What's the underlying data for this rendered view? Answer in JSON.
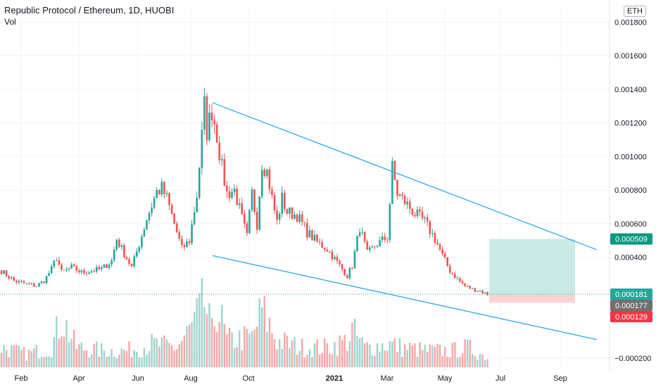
{
  "header": {
    "symbol": "Republic Protocol / Ethereum, 1D, HUOBI",
    "volume_label": "Vol",
    "currency": "ETH"
  },
  "chart_data": {
    "type": "candlestick",
    "title": "Republic Protocol / Ethereum, 1D, HUOBI",
    "x_tick_labels": [
      "Feb",
      "Apr",
      "Jun",
      "Aug",
      "Oct",
      "2021",
      "Mar",
      "May",
      "Jul",
      "Sep"
    ],
    "y_tick_labels": [
      "0.001800",
      "0.001600",
      "0.001400",
      "0.001200",
      "0.001000",
      "0.000800",
      "0.000600",
      "0.000400",
      "0.000200",
      "−0.000200"
    ],
    "y_ticks": [
      0.0018,
      0.0016,
      0.0014,
      0.0012,
      0.001,
      0.0008,
      0.0006,
      0.0004,
      0.0002,
      -0.0002
    ],
    "ylim": [
      -0.00028,
      0.00189
    ],
    "price_path": [
      [
        0,
        0.00032
      ],
      [
        5,
        0.00026
      ],
      [
        10,
        0.00024
      ],
      [
        14,
        0.00023
      ],
      [
        17,
        0.00026
      ],
      [
        20,
        0.00033
      ],
      [
        22,
        0.0004
      ],
      [
        24,
        0.00031
      ],
      [
        28,
        0.00034
      ],
      [
        32,
        0.00031
      ],
      [
        36,
        0.00032
      ],
      [
        40,
        0.00033
      ],
      [
        44,
        0.00038
      ],
      [
        46,
        0.00051
      ],
      [
        48,
        0.00045
      ],
      [
        52,
        0.00034
      ],
      [
        55,
        0.00048
      ],
      [
        58,
        0.00063
      ],
      [
        62,
        0.00079
      ],
      [
        64,
        0.00081
      ],
      [
        66,
        0.00075
      ],
      [
        70,
        0.00055
      ],
      [
        72,
        0.00045
      ],
      [
        75,
        0.0005
      ],
      [
        78,
        0.00077
      ],
      [
        80,
        0.00112
      ],
      [
        81,
        0.0013
      ],
      [
        82,
        0.00115
      ],
      [
        84,
        0.00128
      ],
      [
        86,
        0.00113
      ],
      [
        88,
        0.00093
      ],
      [
        90,
        0.00078
      ],
      [
        93,
        0.0008
      ],
      [
        96,
        0.00063
      ],
      [
        98,
        0.00052
      ],
      [
        100,
        0.00078
      ],
      [
        102,
        0.0006
      ],
      [
        104,
        0.00097
      ],
      [
        106,
        0.00091
      ],
      [
        108,
        0.00075
      ],
      [
        110,
        0.00061
      ],
      [
        112,
        0.00075
      ],
      [
        114,
        0.00067
      ],
      [
        118,
        0.00065
      ],
      [
        122,
        0.00055
      ],
      [
        126,
        0.00049
      ],
      [
        130,
        0.00045
      ],
      [
        133,
        0.00039
      ],
      [
        136,
        0.00033
      ],
      [
        138,
        0.00029
      ],
      [
        140,
        0.00035
      ],
      [
        143,
        0.00058
      ],
      [
        146,
        0.00042
      ],
      [
        150,
        0.00048
      ],
      [
        154,
        0.00052
      ],
      [
        156,
        0.00093
      ],
      [
        158,
        0.00078
      ],
      [
        161,
        0.00073
      ],
      [
        165,
        0.00066
      ],
      [
        169,
        0.00061
      ],
      [
        173,
        0.00051
      ],
      [
        176,
        0.00041
      ],
      [
        179,
        0.00032
      ],
      [
        182,
        0.00027
      ],
      [
        185,
        0.00023
      ],
      [
        188,
        0.00021
      ],
      [
        191,
        0.0002
      ],
      [
        194,
        0.00018
      ]
    ],
    "volume_path": [
      [
        0,
        0.3
      ],
      [
        10,
        0.2
      ],
      [
        20,
        0.3
      ],
      [
        24,
        0.75
      ],
      [
        30,
        0.3
      ],
      [
        40,
        0.25
      ],
      [
        50,
        0.25
      ],
      [
        60,
        0.35
      ],
      [
        70,
        0.3
      ],
      [
        76,
        0.6
      ],
      [
        81,
        0.97
      ],
      [
        84,
        0.5
      ],
      [
        86,
        0.95
      ],
      [
        90,
        0.4
      ],
      [
        100,
        0.45
      ],
      [
        104,
        0.85
      ],
      [
        110,
        0.4
      ],
      [
        120,
        0.3
      ],
      [
        130,
        0.3
      ],
      [
        138,
        0.4
      ],
      [
        140,
        0.55
      ],
      [
        145,
        0.3
      ],
      [
        155,
        0.35
      ],
      [
        160,
        0.3
      ],
      [
        170,
        0.25
      ],
      [
        180,
        0.25
      ],
      [
        186,
        0.3
      ],
      [
        194,
        0.15
      ]
    ],
    "trendlines": [
      {
        "from": [
          "Aug",
          0.00132
        ],
        "to": [
          "Sep",
          0.000445
        ]
      },
      {
        "from": [
          "Aug",
          0.00041
        ],
        "to": [
          "Sep",
          -9e-05
        ]
      }
    ],
    "position_tool": {
      "take_profit": 0.000509,
      "entry": 0.000177,
      "stop_loss": 0.000129
    },
    "price_labels": [
      {
        "value": 0.000509,
        "text": "0.000509",
        "color": "#089981"
      },
      {
        "value": 0.000181,
        "text": "0.000181",
        "color": "#26a69a"
      },
      {
        "value": 0.000177,
        "text": "0.000177",
        "color": "#707070"
      },
      {
        "value": 0.000129,
        "text": "0.000129",
        "color": "#f23645"
      }
    ],
    "colors": {
      "up": "#26a69a",
      "down": "#ef5350",
      "up_volume": "#9fd3cd",
      "down_volume": "#f5a6a6",
      "trendline": "#2faadf",
      "grid": "#f0f3fa",
      "profit_zone": "#c9eae6",
      "loss_zone": "#f8d3d3"
    },
    "grid": true
  }
}
